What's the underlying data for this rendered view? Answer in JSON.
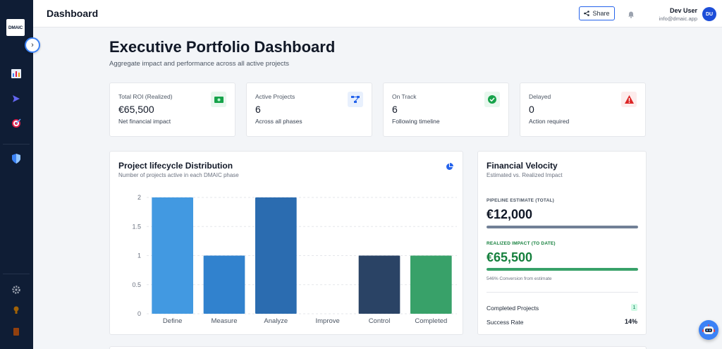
{
  "app": {
    "logo_text": "DMAIC"
  },
  "sidebar": {
    "icons": [
      "chart-icon",
      "play-icon",
      "target-icon",
      "shield-icon",
      "gear-icon",
      "lightbulb-icon",
      "document-icon"
    ]
  },
  "topbar": {
    "title": "Dashboard",
    "share_label": "Share",
    "user_name": "Dev User",
    "user_email": "info@dmaic.app",
    "avatar_initials": "DU"
  },
  "header": {
    "title": "Executive Portfolio Dashboard",
    "subtitle": "Aggregate impact and performance across all active projects"
  },
  "kpis": [
    {
      "label": "Total ROI (Realized)",
      "value": "€65,500",
      "sub": "Net financial impact",
      "icon": "money-icon",
      "color": "#16a34a",
      "bg": "#e8f7ee"
    },
    {
      "label": "Active Projects",
      "value": "6",
      "sub": "Across all phases",
      "icon": "network-icon",
      "color": "#2563eb",
      "bg": "#e8f0fd"
    },
    {
      "label": "On Track",
      "value": "6",
      "sub": "Following timeline",
      "icon": "check-circle-icon",
      "color": "#16a34a",
      "bg": "#e8f7ee"
    },
    {
      "label": "Delayed",
      "value": "0",
      "sub": "Action required",
      "icon": "warning-icon",
      "color": "#dc2626",
      "bg": "#fdecec"
    }
  ],
  "lifecycle": {
    "title": "Project lifecycle Distribution",
    "subtitle": "Number of projects active in each DMAIC phase"
  },
  "chart_data": {
    "type": "bar",
    "categories": [
      "Define",
      "Measure",
      "Analyze",
      "Improve",
      "Control",
      "Completed"
    ],
    "values": [
      2,
      1,
      2,
      0,
      1,
      1
    ],
    "colors": [
      "#4299e1",
      "#3182ce",
      "#2b6cb0",
      "#2c5282",
      "#2a4365",
      "#38a169"
    ],
    "ylim": [
      0,
      2
    ],
    "yticks": [
      "0",
      "0.5",
      "1",
      "1.5",
      "2"
    ],
    "grid": true
  },
  "financial": {
    "title": "Financial Velocity",
    "subtitle": "Estimated vs. Realized Impact",
    "pipeline_label": "PIPELINE ESTIMATE (TOTAL)",
    "pipeline_value": "€12,000",
    "pipeline_fill": 1.0,
    "realized_label": "REALIZED IMPACT (TO DATE)",
    "realized_value": "€65,500",
    "realized_fill": 1.0,
    "conversion_note": "546% Conversion from estimate",
    "completed_label": "Completed Projects",
    "completed_count": "1",
    "success_label": "Success Rate",
    "success_value": "14%"
  }
}
